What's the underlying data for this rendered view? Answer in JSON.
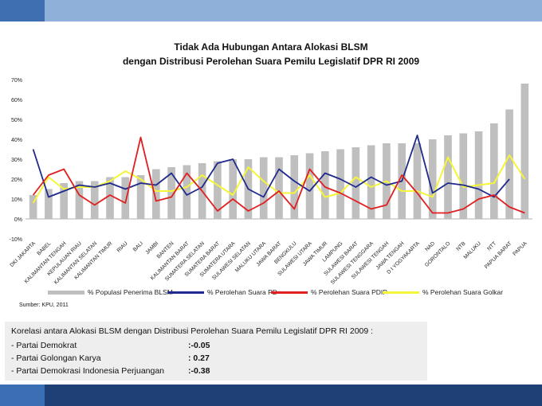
{
  "title_line1": "Tidak Ada Hubungan Antara Alokasi BLSM",
  "title_line2": "dengan Distribusi Perolehan Suara Pemilu Legislatif DPR RI 2009",
  "source": "Sumber: KPU, 2011",
  "correlation": {
    "title": "Korelasi antara Alokasi BLSM dengan Distribusi Perolehan Suara Pemilu Legislatif DPR RI 2009 :",
    "rows": [
      {
        "party": "- Partai Demokrat",
        "value": ":-0.05"
      },
      {
        "party": "- Partai Golongan Karya",
        "value": ": 0.27"
      },
      {
        "party": "- Partai Demokrasi Indonesia Perjuangan",
        "value": ":-0.38"
      }
    ]
  },
  "colors": {
    "bar": "#bfbfbf",
    "pd": "#1f2a8c",
    "pdip": "#e02020",
    "golkar": "#f5f53a",
    "top_band": "#8fb1d9",
    "bottom_band": "#1f3f77"
  },
  "chart_data": {
    "type": "bar",
    "title": "Tidak Ada Hubungan Antara Alokasi BLSM dengan Distribusi Perolehan Suara Pemilu Legislatif DPR RI 2009",
    "ylim": [
      -10,
      70
    ],
    "ytick_labels": [
      "70%",
      "60%",
      "50%",
      "40%",
      "30%",
      "20%",
      "10%",
      "0%",
      "-10%"
    ],
    "categories": [
      "DKI JAKARTA",
      "BABEL",
      "KALIMANTAN TENGAH",
      "KEPULAUAN RIAU",
      "KALIMANTAN SELATAN",
      "KALIMANTAN TIMUR",
      "RIAU",
      "BALI",
      "JAMBI",
      "BANTEN",
      "KALIMANTAN BARAT",
      "SUMATERA SELATAN",
      "SUMATERA BARAT",
      "SUMATERA UTARA",
      "SULAWESI SELATAN",
      "MALUKU UTARA",
      "JAWA BARAT",
      "BENGKULU",
      "SULAWESI UTARA",
      "JAWA TIMUR",
      "LAMPUNG",
      "SULAWESI BARAT",
      "SULAWESI TENGGARA",
      "SULAWESI TENGAH",
      "JAWA TENGAH",
      "D I YOGYAKARTA",
      "NAD",
      "GORONTALO",
      "NTB",
      "MALUKU",
      "NTT",
      "PAPUA BARAT",
      "PAPUA"
    ],
    "series": [
      {
        "name": "% Populasi Penerima BLSM",
        "kind": "bar",
        "values": [
          12,
          15,
          18,
          19,
          19,
          21,
          21,
          22,
          25,
          26,
          27,
          28,
          29,
          30,
          30,
          31,
          31,
          32,
          33,
          34,
          35,
          36,
          37,
          38,
          38,
          38,
          40,
          42,
          43,
          44,
          48,
          55,
          68
        ]
      },
      {
        "name": "% Perolehan Suara PD",
        "kind": "line",
        "values": [
          35,
          11,
          14,
          17,
          16,
          18,
          15,
          18,
          17,
          23,
          12,
          16,
          28,
          30,
          15,
          11,
          25,
          19,
          14,
          23,
          20,
          16,
          21,
          17,
          19,
          42,
          13,
          18,
          17,
          15,
          11,
          20,
          null
        ]
      },
      {
        "name": "% Perolehan Suara PDIP",
        "kind": "line",
        "values": [
          12,
          22,
          25,
          12,
          7,
          12,
          8,
          41,
          9,
          11,
          23,
          14,
          4,
          10,
          4,
          8,
          14,
          5,
          25,
          16,
          13,
          9,
          5,
          7,
          22,
          13,
          3,
          3,
          5,
          10,
          12,
          6,
          3
        ]
      },
      {
        "name": "% Perolehan Suara Golkar",
        "kind": "line",
        "values": [
          8,
          21,
          15,
          16,
          16,
          19,
          24,
          20,
          14,
          14,
          16,
          22,
          17,
          12,
          26,
          19,
          13,
          13,
          22,
          11,
          13,
          21,
          16,
          19,
          14,
          14,
          11,
          31,
          16,
          17,
          18,
          32,
          20
        ]
      }
    ]
  }
}
